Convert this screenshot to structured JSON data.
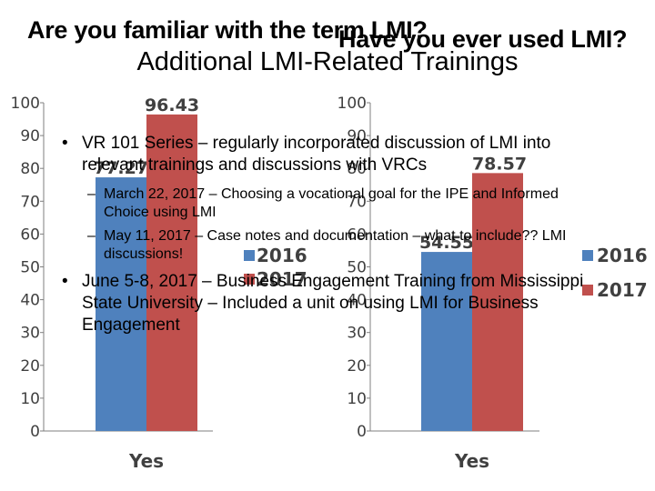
{
  "slide_title": "Additional LMI-Related Trainings",
  "bullets": [
    {
      "text": "VR 101 Series – regularly incorporated discussion of LMI into relevant trainings and discussions with VRCs",
      "sub": [
        "March 22, 2017 – Choosing a vocational goal for the IPE and Informed Choice using LMI",
        "May 11, 2017 – Case notes and documentation – what to include?? LMI discussions!"
      ]
    },
    {
      "text": "June 5-8, 2017 – Business Engagement Training from Mississippi State University – Included a unit on using LMI for Business Engagement",
      "sub": []
    }
  ],
  "chart_data": [
    {
      "type": "bar",
      "title": "Are you familiar with the term LMI?",
      "categories": [
        "Yes"
      ],
      "series": [
        {
          "name": "2016",
          "values": [
            77.27
          ],
          "color": "#4f81bd"
        },
        {
          "name": "2017",
          "values": [
            96.43
          ],
          "color": "#c0504d"
        }
      ],
      "data_labels": [
        "77.27",
        "96.43"
      ],
      "ylim": [
        0,
        100
      ],
      "yticks": [
        "0",
        "10",
        "20",
        "30",
        "40",
        "50",
        "60",
        "70",
        "80",
        "90",
        "100"
      ],
      "legend": "inside-right"
    },
    {
      "type": "bar",
      "title": "Have you ever used LMI?",
      "categories": [
        "Yes"
      ],
      "series": [
        {
          "name": "2016",
          "values": [
            54.55
          ],
          "color": "#4f81bd"
        },
        {
          "name": "2017",
          "values": [
            78.57
          ],
          "color": "#c0504d"
        }
      ],
      "data_labels": [
        "54.55",
        "78.57"
      ],
      "ylim": [
        0,
        100
      ],
      "yticks": [
        "0",
        "10",
        "20",
        "30",
        "40",
        "50",
        "60",
        "70",
        "80",
        "90",
        "100"
      ],
      "legend": "right"
    }
  ]
}
